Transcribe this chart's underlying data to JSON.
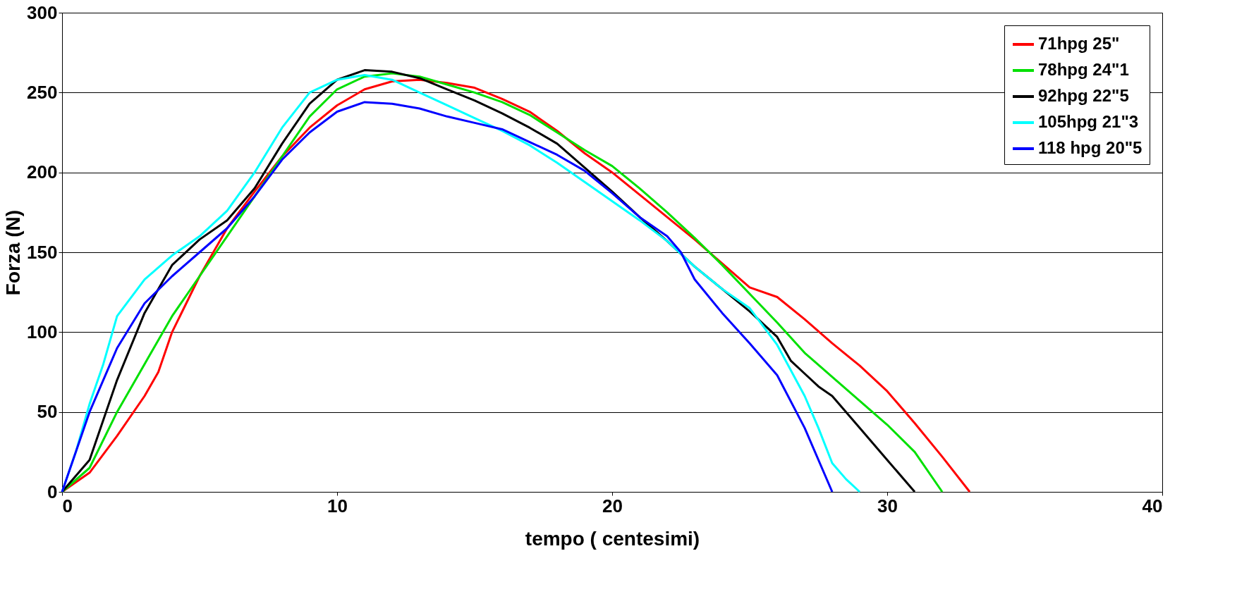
{
  "chart_data": {
    "type": "line",
    "xlabel": "tempo ( centesimi)",
    "ylabel": "Forza (N)",
    "xlim": [
      0,
      40
    ],
    "xticks": [
      0,
      10,
      20,
      30,
      40
    ],
    "ylim": [
      0,
      300
    ],
    "yticks": [
      0,
      50,
      100,
      150,
      200,
      250,
      300
    ],
    "grid": "y",
    "legend": "top right",
    "marker": "none",
    "line_style": "solid",
    "series": [
      {
        "name": "71hpg 25\"",
        "color": "#ff0000",
        "x": [
          0,
          1,
          2,
          3,
          3.5,
          4,
          5,
          6,
          7,
          8,
          9,
          10,
          11,
          12,
          13,
          14,
          15,
          16,
          17,
          18,
          19,
          20,
          21,
          22,
          23,
          24,
          25,
          26,
          27,
          28,
          29,
          30,
          31,
          32,
          33
        ],
        "values": [
          0,
          12,
          35,
          60,
          75,
          100,
          135,
          165,
          188,
          210,
          228,
          242,
          252,
          257,
          258,
          256,
          253,
          246,
          238,
          226,
          212,
          200,
          186,
          172,
          158,
          143,
          128,
          122,
          108,
          93,
          79,
          63,
          43,
          22,
          0
        ]
      },
      {
        "name": "78hpg 24\"1",
        "color": "#00e000",
        "x": [
          0,
          1,
          2,
          3,
          4,
          5,
          6,
          7,
          8,
          9,
          10,
          11,
          12,
          13,
          14,
          15,
          16,
          17,
          18,
          19,
          20,
          21,
          22,
          23,
          24,
          25,
          26,
          27,
          28,
          29,
          30,
          31,
          32
        ],
        "values": [
          0,
          15,
          50,
          80,
          110,
          135,
          160,
          185,
          210,
          235,
          252,
          260,
          262,
          260,
          255,
          250,
          244,
          236,
          225,
          214,
          204,
          190,
          175,
          159,
          142,
          124,
          106,
          87,
          72,
          57,
          42,
          25,
          0
        ]
      },
      {
        "name": "92hpg 22\"5",
        "color": "#000000",
        "x": [
          0,
          1,
          2,
          3,
          4,
          5,
          6,
          7,
          8,
          9,
          10,
          11,
          12,
          13,
          14,
          15,
          16,
          17,
          18,
          19,
          20,
          21,
          22,
          23,
          24,
          25,
          26,
          26.5,
          27,
          27.5,
          28,
          29,
          30,
          31
        ],
        "values": [
          0,
          20,
          70,
          112,
          142,
          158,
          170,
          190,
          218,
          243,
          258,
          264,
          263,
          259,
          252,
          245,
          237,
          228,
          218,
          203,
          188,
          172,
          157,
          141,
          127,
          113,
          97,
          82,
          74,
          66,
          60,
          40,
          20,
          0
        ]
      },
      {
        "name": "105hpg 21\"3",
        "color": "#00ffff",
        "x": [
          0,
          0.5,
          1,
          1.5,
          2,
          3,
          4,
          5,
          6,
          7,
          8,
          9,
          10,
          11,
          12,
          13,
          14,
          15,
          16,
          17,
          18,
          19,
          20,
          21,
          22,
          23,
          24,
          25,
          26,
          27,
          27.5,
          28,
          28.5,
          29
        ],
        "values": [
          0,
          25,
          55,
          80,
          110,
          133,
          148,
          160,
          176,
          200,
          228,
          250,
          258,
          261,
          258,
          250,
          242,
          234,
          226,
          217,
          206,
          194,
          182,
          170,
          157,
          141,
          127,
          115,
          92,
          60,
          40,
          18,
          8,
          0
        ]
      },
      {
        "name": "118 hpg 20\"5",
        "color": "#0000ff",
        "x": [
          0,
          1,
          2,
          3,
          4,
          5,
          6,
          7,
          8,
          9,
          10,
          11,
          12,
          13,
          14,
          15,
          16,
          17,
          18,
          19,
          20,
          21,
          22,
          22.5,
          23,
          24,
          25,
          26,
          27,
          28
        ],
        "values": [
          0,
          50,
          90,
          118,
          135,
          150,
          165,
          185,
          208,
          225,
          238,
          244,
          243,
          240,
          235,
          231,
          227,
          219,
          211,
          201,
          187,
          172,
          160,
          150,
          133,
          112,
          93,
          73,
          40,
          0
        ]
      }
    ]
  }
}
